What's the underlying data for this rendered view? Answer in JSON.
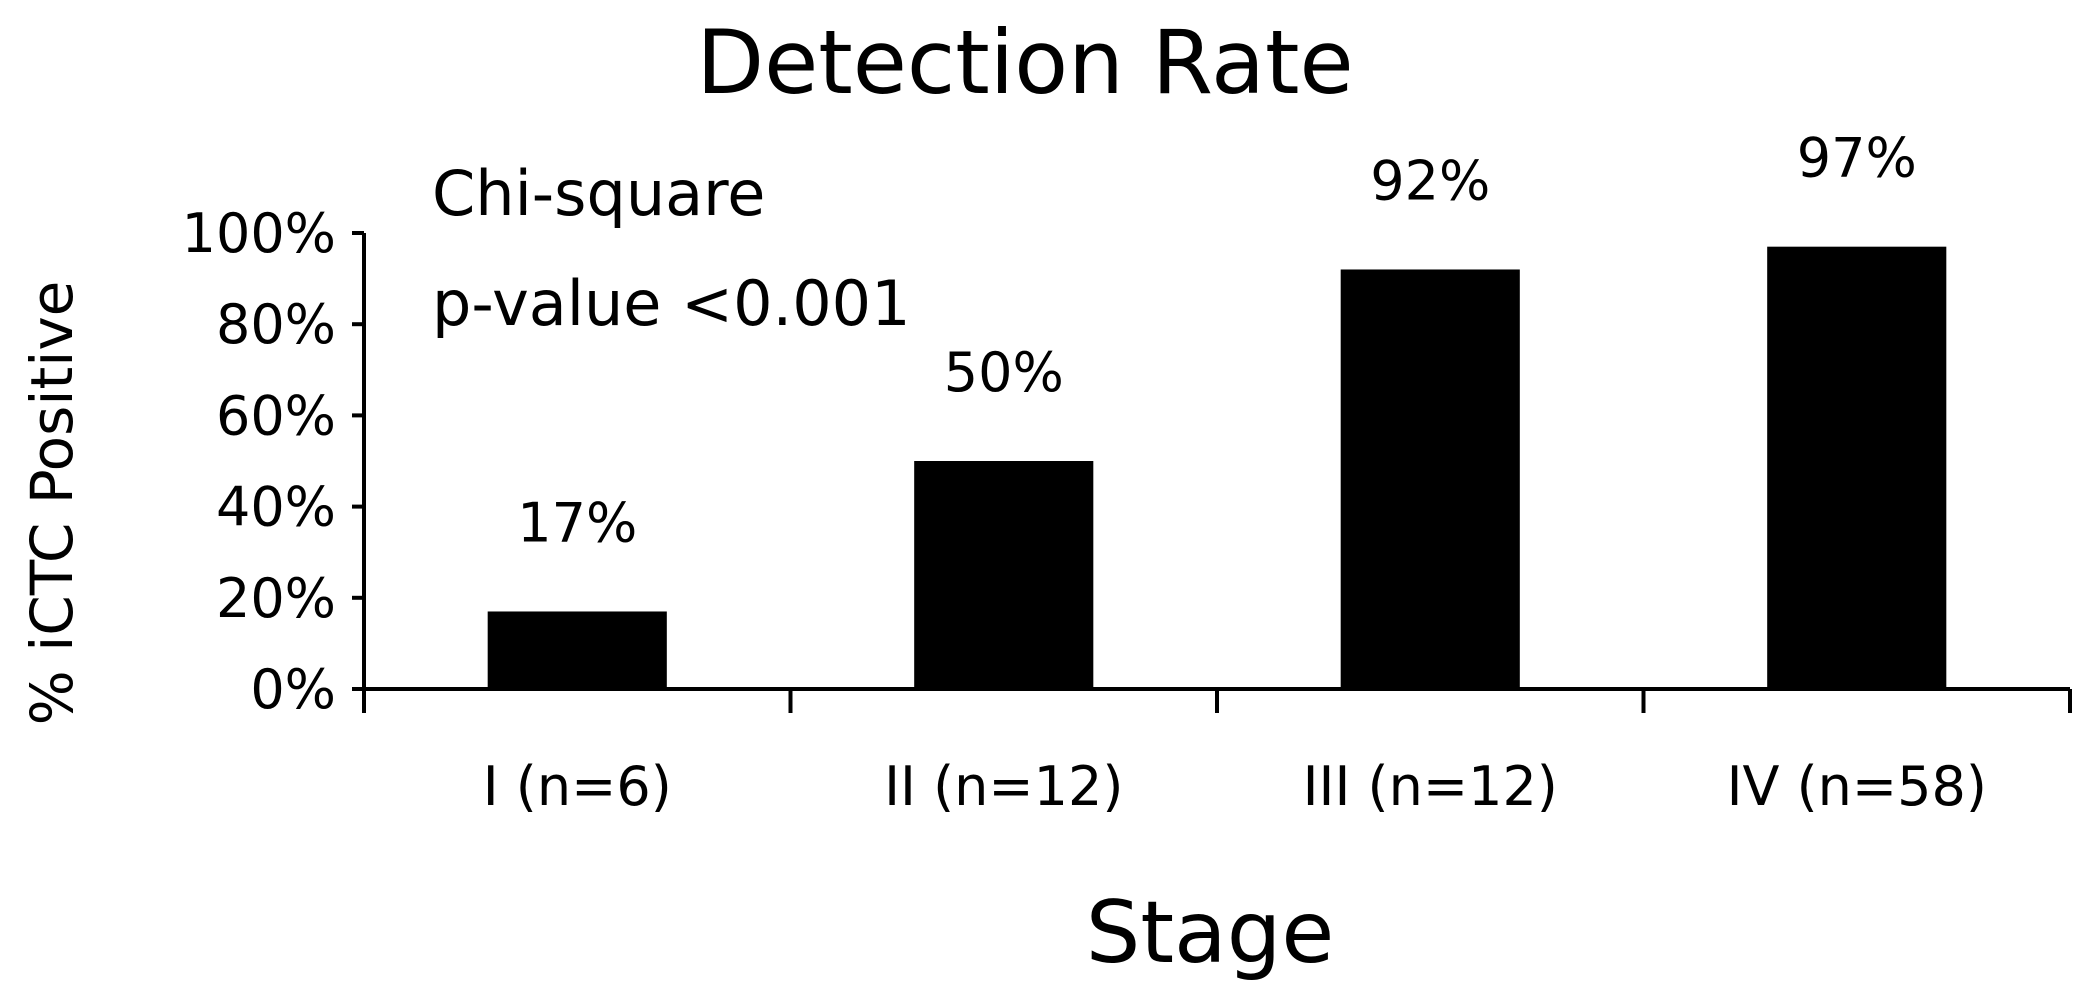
{
  "chart_data": {
    "type": "bar",
    "title": "Detection Rate",
    "annotation": [
      "Chi-square",
      "p-value <0.001"
    ],
    "xlabel": "Stage",
    "ylabel": "% iCTC Positive",
    "categories": [
      "I (n=6)",
      "II (n=12)",
      "III (n=12)",
      "IV (n=58)"
    ],
    "values": [
      17,
      50,
      92,
      97
    ],
    "data_labels": [
      "17%",
      "50%",
      "92%",
      "97%"
    ],
    "ylim": [
      0,
      100
    ],
    "yticks": [
      0,
      20,
      40,
      60,
      80,
      100
    ],
    "ytick_labels": [
      "0%",
      "20%",
      "40%",
      "60%",
      "80%",
      "100%"
    ],
    "grid": false,
    "legend": "none",
    "bar_color": "#000000"
  }
}
